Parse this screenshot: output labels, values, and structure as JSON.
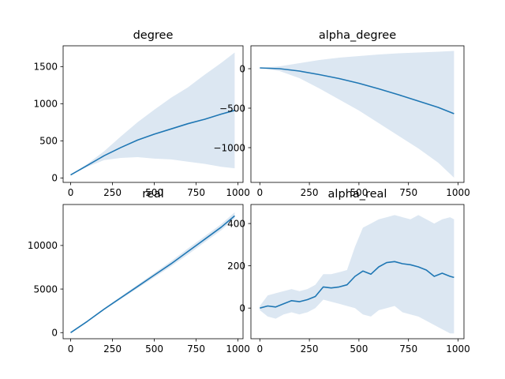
{
  "figure": {
    "background": "#ffffff",
    "line_color": "#1f77b4",
    "band_color": "#dce7f2"
  },
  "chart_data": [
    {
      "type": "line",
      "title": "degree",
      "xlabel": "",
      "ylabel": "",
      "xlim": [
        -45,
        1030
      ],
      "ylim": [
        -60,
        1780
      ],
      "xticks": [
        0,
        250,
        500,
        750,
        1000
      ],
      "yticks": [
        0,
        500,
        1000,
        1500
      ],
      "grid": false,
      "series": [
        {
          "x": [
            0,
            100,
            200,
            300,
            400,
            500,
            600,
            700,
            800,
            900,
            980
          ],
          "y": [
            40,
            170,
            300,
            410,
            510,
            590,
            660,
            730,
            790,
            860,
            910
          ],
          "lower": [
            40,
            150,
            240,
            270,
            280,
            260,
            250,
            220,
            190,
            150,
            130
          ],
          "upper": [
            40,
            190,
            360,
            560,
            750,
            920,
            1080,
            1220,
            1390,
            1550,
            1690
          ]
        }
      ]
    },
    {
      "type": "line",
      "title": "alpha_degree",
      "xlabel": "",
      "ylabel": "",
      "xlim": [
        -45,
        1030
      ],
      "ylim": [
        -1440,
        290
      ],
      "xticks": [
        0,
        250,
        500,
        750,
        1000
      ],
      "yticks": [
        0,
        -500,
        -1000
      ],
      "grid": false,
      "series": [
        {
          "x": [
            0,
            100,
            200,
            300,
            400,
            500,
            600,
            700,
            800,
            900,
            980
          ],
          "y": [
            10,
            0,
            -30,
            -75,
            -125,
            -185,
            -255,
            -330,
            -410,
            -490,
            -570
          ],
          "lower": [
            10,
            -30,
            -120,
            -250,
            -390,
            -530,
            -690,
            -850,
            -1010,
            -1190,
            -1380
          ],
          "upper": [
            10,
            30,
            70,
            110,
            140,
            160,
            180,
            195,
            205,
            215,
            225
          ]
        }
      ]
    },
    {
      "type": "line",
      "title": "real",
      "xlabel": "",
      "ylabel": "",
      "xlim": [
        -45,
        1030
      ],
      "ylim": [
        -700,
        14700
      ],
      "xticks": [
        0,
        250,
        500,
        750,
        1000
      ],
      "yticks": [
        0,
        5000,
        10000
      ],
      "grid": false,
      "series": [
        {
          "x": [
            0,
            100,
            200,
            300,
            400,
            500,
            600,
            700,
            800,
            900,
            980
          ],
          "y": [
            0,
            1300,
            2700,
            4000,
            5300,
            6600,
            7900,
            9300,
            10700,
            12100,
            13400
          ],
          "lower": [
            0,
            1250,
            2600,
            3850,
            5100,
            6350,
            7600,
            8950,
            10350,
            11750,
            13100
          ],
          "upper": [
            0,
            1350,
            2800,
            4150,
            5500,
            6850,
            8200,
            9650,
            11050,
            12450,
            13800
          ]
        }
      ]
    },
    {
      "type": "line",
      "title": "alpha_real",
      "xlabel": "",
      "ylabel": "",
      "xlim": [
        -45,
        1030
      ],
      "ylim": [
        -145,
        490
      ],
      "xticks": [
        0,
        250,
        500,
        750,
        1000
      ],
      "yticks": [
        0,
        200,
        400
      ],
      "grid": false,
      "series": [
        {
          "x": [
            0,
            40,
            80,
            120,
            160,
            200,
            240,
            280,
            320,
            360,
            400,
            440,
            480,
            520,
            560,
            600,
            640,
            680,
            720,
            760,
            800,
            840,
            880,
            920,
            960,
            980
          ],
          "y": [
            0,
            10,
            5,
            20,
            35,
            30,
            40,
            55,
            100,
            95,
            100,
            110,
            150,
            175,
            160,
            195,
            215,
            220,
            210,
            205,
            195,
            180,
            150,
            165,
            150,
            145
          ],
          "lower": [
            -10,
            -40,
            -50,
            -30,
            -20,
            -30,
            -20,
            0,
            40,
            30,
            20,
            10,
            0,
            -30,
            -40,
            -10,
            0,
            10,
            -20,
            -30,
            -40,
            -60,
            -80,
            -100,
            -120,
            -120
          ],
          "upper": [
            10,
            60,
            70,
            80,
            90,
            80,
            90,
            110,
            160,
            160,
            170,
            180,
            290,
            380,
            400,
            420,
            430,
            440,
            430,
            420,
            440,
            420,
            400,
            420,
            430,
            420
          ]
        }
      ]
    }
  ]
}
